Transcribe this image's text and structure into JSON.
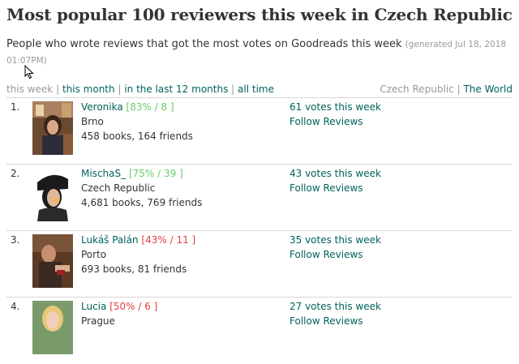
{
  "header": {
    "title": "Most popular 100 reviewers this week in Czech Republic",
    "subtitle": "People who wrote reviews that got the most votes on Goodreads this week",
    "generated": "(generated Jul 18, 2018 01:07PM)"
  },
  "filters": {
    "this_week": "this week",
    "this_month": "this month",
    "last_12_months": "in the last 12 months",
    "all_time": "all time",
    "country": "Czech Republic",
    "world": "The World"
  },
  "reviewers": [
    {
      "rank": "1.",
      "name": "Veronika",
      "stat": "[83% / 8 ]",
      "stat_class": "good",
      "location": "Brno",
      "counts": "458 books, 164 friends",
      "votes": "61 votes this week",
      "follow": "Follow Reviews"
    },
    {
      "rank": "2.",
      "name": "MischaS_",
      "stat": "[75% / 39 ]",
      "stat_class": "good",
      "location": "Czech Republic",
      "counts": "4,681 books, 769 friends",
      "votes": "43 votes this week",
      "follow": "Follow Reviews"
    },
    {
      "rank": "3.",
      "name": "Lukáš Palán",
      "stat": "[43% / 11 ]",
      "stat_class": "bad",
      "location": "Porto",
      "counts": "693 books, 81 friends",
      "votes": "35 votes this week",
      "follow": "Follow Reviews"
    },
    {
      "rank": "4.",
      "name": "Lucia",
      "stat": "[50% / 6 ]",
      "stat_class": "bad",
      "location": "Prague",
      "counts": "",
      "votes": "27 votes this week",
      "follow": "Follow Reviews"
    }
  ]
}
